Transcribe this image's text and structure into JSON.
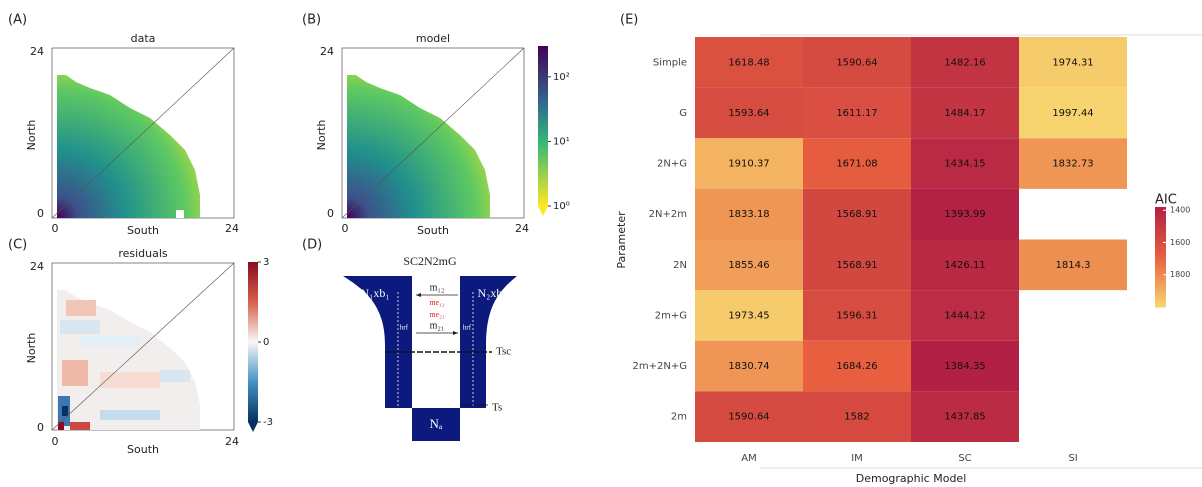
{
  "panels": {
    "a": {
      "label": "(A)",
      "title": "data",
      "xlabel": "South",
      "ylabel": "North",
      "xticks": [
        0,
        24
      ],
      "yticks": [
        0,
        24
      ]
    },
    "b": {
      "label": "(B)",
      "title": "model",
      "xlabel": "South",
      "ylabel": "North",
      "xticks": [
        0,
        24
      ],
      "yticks": [
        0,
        24
      ],
      "colorbar_lim": [
        1,
        300
      ],
      "colorbar_ticks": [
        {
          "value": 1,
          "label": "10⁰"
        },
        {
          "value": 10,
          "label": "10¹"
        },
        {
          "value": 100,
          "label": "10²"
        }
      ]
    },
    "c": {
      "label": "(C)",
      "title": "residuals",
      "xlabel": "South",
      "ylabel": "North",
      "xticks": [
        0,
        24
      ],
      "yticks": [
        0,
        24
      ],
      "colorbar_lim": [
        -3,
        3
      ],
      "colorbar_ticks": [
        3,
        0,
        -3
      ]
    },
    "d": {
      "label": "(D)",
      "title": "SC2N2mG",
      "pop1": "N₁xb₁",
      "pop2": "N₂xb₂",
      "m12": "m₁₂",
      "me12": "me₁₂",
      "me21": "me₂₁",
      "m21": "m₂₁",
      "hrf1": "hrf",
      "hrf2": "hrf",
      "tsc": "Tsc",
      "ts": "Ts",
      "na": "Nₐ"
    }
  },
  "chart_data": {
    "type": "heatmap",
    "panel_label": "(E)",
    "x_label": "Demographic Model",
    "y_label": "Parameter",
    "categories": [
      "AM",
      "IM",
      "SC",
      "SI"
    ],
    "rows": [
      "Simple",
      "G",
      "2N+G",
      "2N+2m",
      "2N",
      "2m+G",
      "2m+2N+G",
      "2m"
    ],
    "values": [
      [
        1618.48,
        1590.64,
        1482.16,
        1974.31
      ],
      [
        1593.64,
        1611.17,
        1484.17,
        1997.44
      ],
      [
        1910.37,
        1671.08,
        1434.15,
        1832.73
      ],
      [
        1833.18,
        1568.91,
        1393.99,
        null
      ],
      [
        1855.46,
        1568.91,
        1426.11,
        1814.3
      ],
      [
        1973.45,
        1596.31,
        1444.12,
        null
      ],
      [
        1830.74,
        1684.26,
        1384.35,
        null
      ],
      [
        1590.64,
        1582,
        1437.85,
        null
      ]
    ],
    "legend_title": "AIC",
    "clim": [
      1380,
      2000
    ],
    "cticks": [
      1400,
      1600,
      1800
    ],
    "colors": [
      "#b11f45",
      "#e8603f",
      "#f7d56f"
    ]
  }
}
